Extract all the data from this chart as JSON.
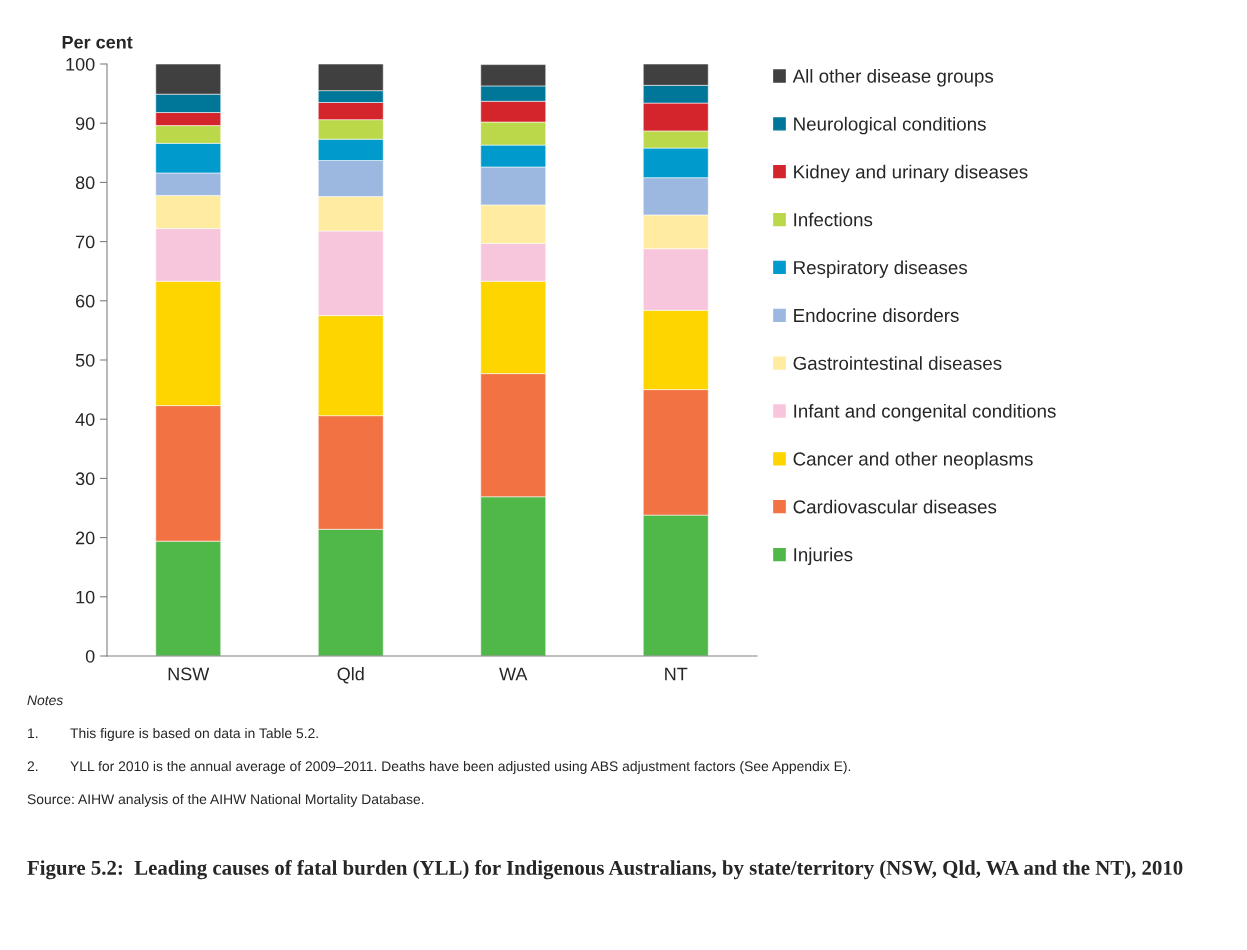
{
  "chart_data": {
    "type": "bar",
    "stacked": true,
    "title": "Figure 5.2:  Leading causes of fatal burden (YLL) for Indigenous Australians, by state/territory (NSW, Qld, WA and the NT), 2010",
    "ylabel": "Per cent",
    "categories": [
      "NSW",
      "Qld",
      "WA",
      "NT"
    ],
    "ylim": [
      0,
      100
    ],
    "yticks": [
      0,
      10,
      20,
      30,
      40,
      50,
      60,
      70,
      80,
      90,
      100
    ],
    "grid": false,
    "legend": "right",
    "series": [
      {
        "name": "Injuries",
        "color": "#50b848",
        "values": [
          19.4,
          21.4,
          26.9,
          23.8
        ]
      },
      {
        "name": "Cardiovascular diseases",
        "color": "#f37243",
        "values": [
          22.9,
          19.2,
          20.8,
          21.2
        ]
      },
      {
        "name": "Cancer and other neoplasms",
        "color": "#ffd500",
        "values": [
          21.0,
          16.9,
          15.6,
          13.4
        ]
      },
      {
        "name": "Infant and congenital conditions",
        "color": "#f7c6dd",
        "values": [
          8.9,
          14.3,
          6.4,
          10.4
        ]
      },
      {
        "name": "Gastrointestinal diseases",
        "color": "#ffeca0",
        "values": [
          5.6,
          5.8,
          6.5,
          5.7
        ]
      },
      {
        "name": "Endocrine disorders",
        "color": "#9db8e0",
        "values": [
          3.8,
          6.1,
          6.4,
          6.3
        ]
      },
      {
        "name": "Respiratory diseases",
        "color": "#009bcc",
        "values": [
          5.0,
          3.6,
          3.7,
          5.0
        ]
      },
      {
        "name": "Infections",
        "color": "#bad84a",
        "values": [
          3.0,
          3.3,
          3.9,
          2.9
        ]
      },
      {
        "name": "Kidney and urinary diseases",
        "color": "#d4242c",
        "values": [
          2.2,
          2.9,
          3.5,
          4.7
        ]
      },
      {
        "name": "Neurological conditions",
        "color": "#007699",
        "values": [
          3.1,
          2.0,
          2.6,
          3.0
        ]
      },
      {
        "name": "All other disease groups",
        "color": "#404040",
        "values": [
          5.1,
          4.5,
          3.6,
          3.6
        ]
      }
    ],
    "annotations": [
      "Notes",
      "1.\tThis figure is based on data in Table 5.2.",
      "2.\tYLL for 2010 is the annual average of 2009–2011. Deaths have been adjusted using ABS adjustment factors (See Appendix E).",
      "Source: AIHW analysis of the AIHW National Mortality Database."
    ]
  }
}
